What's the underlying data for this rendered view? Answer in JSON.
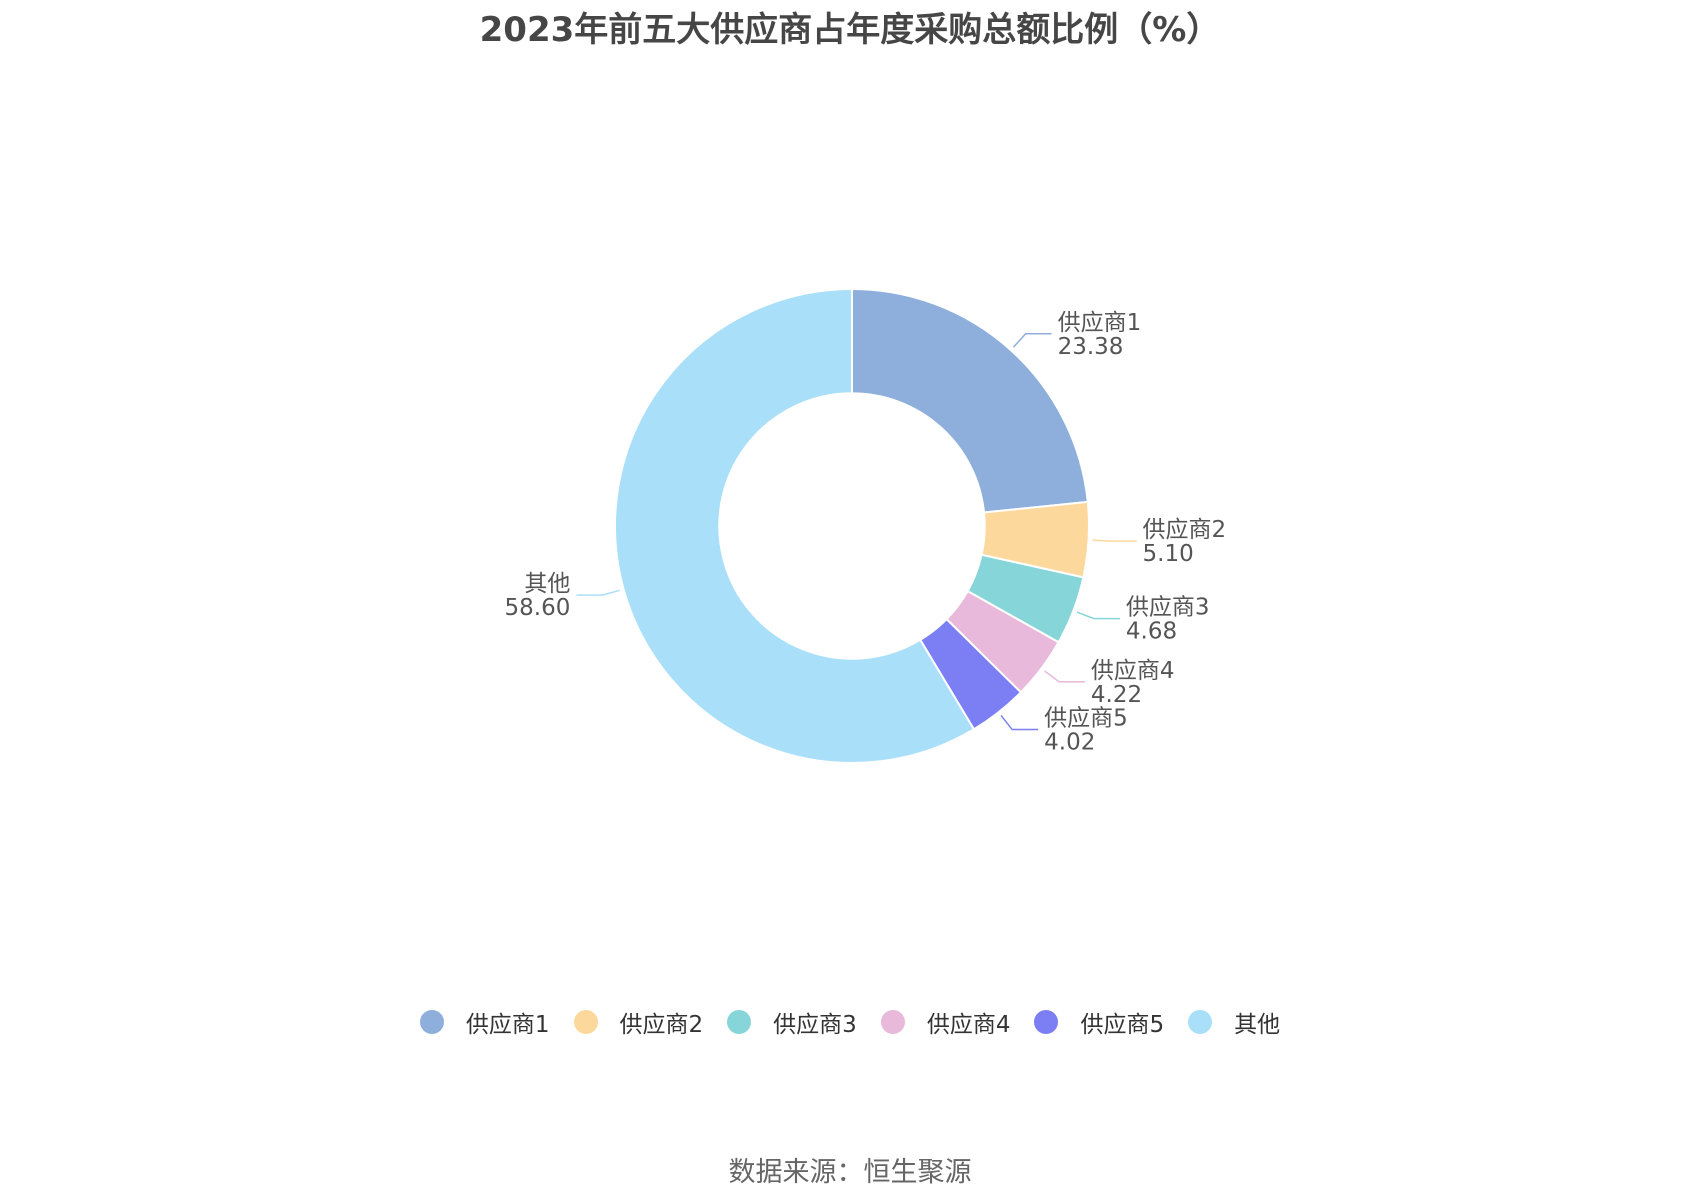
{
  "chart_data": {
    "type": "pie",
    "title": "2023年前五大供应商占年度采购总额比例（%）",
    "inner_radius_ratio": 0.56,
    "categories": [
      "供应商1",
      "供应商2",
      "供应商3",
      "供应商4",
      "供应商5",
      "其他"
    ],
    "values": [
      23.38,
      5.1,
      4.68,
      4.22,
      4.02,
      58.6
    ],
    "value_labels": [
      "23.38",
      "5.10",
      "4.68",
      "4.22",
      "4.02",
      "58.60"
    ],
    "colors": [
      "#8eaedc",
      "#fdd89c",
      "#86d5d8",
      "#e8b9da",
      "#7b7ff3",
      "#aadff9"
    ],
    "legend": "bottom"
  },
  "footer": {
    "source": "数据来源：恒生聚源"
  }
}
